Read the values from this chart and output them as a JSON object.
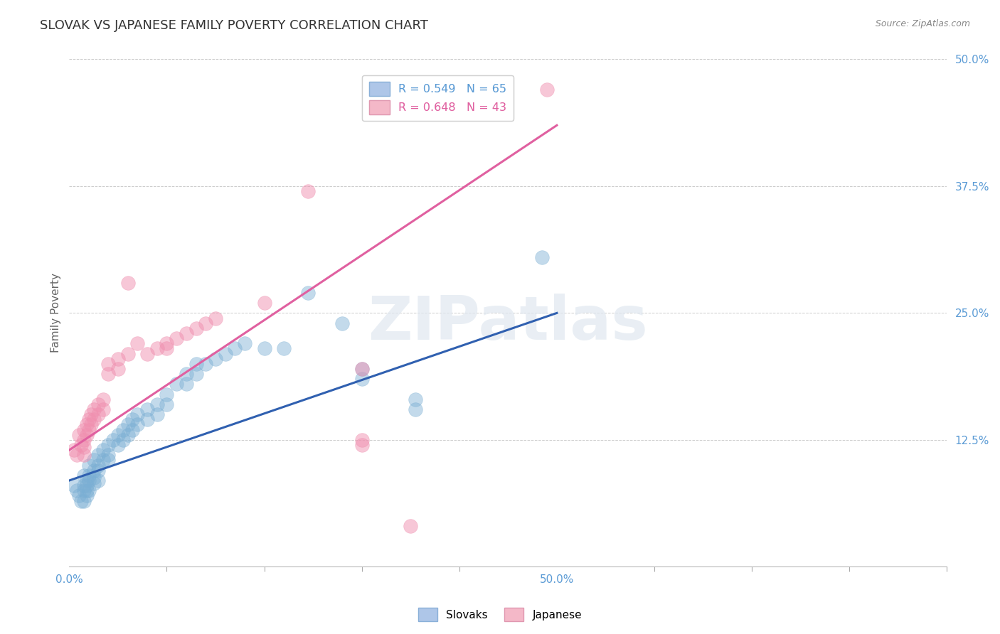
{
  "title": "SLOVAK VS JAPANESE FAMILY POVERTY CORRELATION CHART",
  "source": "Source: ZipAtlas.com",
  "ylabel": "Family Poverty",
  "y_tick_labels": [
    "12.5%",
    "25.0%",
    "37.5%",
    "50.0%"
  ],
  "y_tick_positions": [
    0.125,
    0.25,
    0.375,
    0.5
  ],
  "xlim": [
    0.0,
    0.5
  ],
  "ylim": [
    0.0,
    0.5
  ],
  "legend_entries": [
    {
      "label": "R = 0.549   N = 65",
      "color": "#aec6e8"
    },
    {
      "label": "R = 0.648   N = 43",
      "color": "#f4b8c8"
    }
  ],
  "slovak_color": "#7bafd4",
  "japanese_color": "#f090b0",
  "background_color": "#ffffff",
  "grid_color": "#cccccc",
  "watermark_text": "ZIPatlas",
  "slovak_line_color": "#3060b0",
  "japanese_line_color": "#e060a0",
  "slovak_scatter": [
    [
      0.005,
      0.08
    ],
    [
      0.008,
      0.075
    ],
    [
      0.01,
      0.07
    ],
    [
      0.012,
      0.065
    ],
    [
      0.015,
      0.09
    ],
    [
      0.015,
      0.08
    ],
    [
      0.015,
      0.075
    ],
    [
      0.015,
      0.065
    ],
    [
      0.018,
      0.085
    ],
    [
      0.018,
      0.08
    ],
    [
      0.018,
      0.075
    ],
    [
      0.018,
      0.07
    ],
    [
      0.02,
      0.1
    ],
    [
      0.02,
      0.09
    ],
    [
      0.02,
      0.085
    ],
    [
      0.02,
      0.075
    ],
    [
      0.025,
      0.105
    ],
    [
      0.025,
      0.095
    ],
    [
      0.025,
      0.088
    ],
    [
      0.025,
      0.082
    ],
    [
      0.03,
      0.11
    ],
    [
      0.03,
      0.1
    ],
    [
      0.03,
      0.095
    ],
    [
      0.03,
      0.085
    ],
    [
      0.035,
      0.115
    ],
    [
      0.035,
      0.105
    ],
    [
      0.04,
      0.12
    ],
    [
      0.04,
      0.11
    ],
    [
      0.04,
      0.105
    ],
    [
      0.045,
      0.125
    ],
    [
      0.05,
      0.13
    ],
    [
      0.05,
      0.12
    ],
    [
      0.055,
      0.135
    ],
    [
      0.055,
      0.125
    ],
    [
      0.06,
      0.14
    ],
    [
      0.06,
      0.13
    ],
    [
      0.065,
      0.145
    ],
    [
      0.065,
      0.135
    ],
    [
      0.07,
      0.15
    ],
    [
      0.07,
      0.14
    ],
    [
      0.08,
      0.155
    ],
    [
      0.08,
      0.145
    ],
    [
      0.09,
      0.16
    ],
    [
      0.09,
      0.15
    ],
    [
      0.1,
      0.17
    ],
    [
      0.1,
      0.16
    ],
    [
      0.11,
      0.18
    ],
    [
      0.12,
      0.19
    ],
    [
      0.12,
      0.18
    ],
    [
      0.13,
      0.2
    ],
    [
      0.13,
      0.19
    ],
    [
      0.14,
      0.2
    ],
    [
      0.15,
      0.205
    ],
    [
      0.16,
      0.21
    ],
    [
      0.17,
      0.215
    ],
    [
      0.18,
      0.22
    ],
    [
      0.2,
      0.215
    ],
    [
      0.22,
      0.215
    ],
    [
      0.245,
      0.27
    ],
    [
      0.28,
      0.24
    ],
    [
      0.3,
      0.195
    ],
    [
      0.3,
      0.185
    ],
    [
      0.355,
      0.165
    ],
    [
      0.355,
      0.155
    ],
    [
      0.485,
      0.305
    ]
  ],
  "japanese_scatter": [
    [
      0.005,
      0.115
    ],
    [
      0.008,
      0.11
    ],
    [
      0.01,
      0.13
    ],
    [
      0.012,
      0.12
    ],
    [
      0.015,
      0.135
    ],
    [
      0.015,
      0.125
    ],
    [
      0.015,
      0.118
    ],
    [
      0.015,
      0.11
    ],
    [
      0.018,
      0.14
    ],
    [
      0.018,
      0.13
    ],
    [
      0.02,
      0.145
    ],
    [
      0.02,
      0.135
    ],
    [
      0.022,
      0.15
    ],
    [
      0.022,
      0.14
    ],
    [
      0.025,
      0.155
    ],
    [
      0.025,
      0.145
    ],
    [
      0.03,
      0.16
    ],
    [
      0.03,
      0.15
    ],
    [
      0.035,
      0.165
    ],
    [
      0.035,
      0.155
    ],
    [
      0.04,
      0.2
    ],
    [
      0.04,
      0.19
    ],
    [
      0.05,
      0.205
    ],
    [
      0.05,
      0.195
    ],
    [
      0.06,
      0.21
    ],
    [
      0.07,
      0.22
    ],
    [
      0.08,
      0.21
    ],
    [
      0.09,
      0.215
    ],
    [
      0.1,
      0.22
    ],
    [
      0.1,
      0.215
    ],
    [
      0.11,
      0.225
    ],
    [
      0.12,
      0.23
    ],
    [
      0.13,
      0.235
    ],
    [
      0.14,
      0.24
    ],
    [
      0.15,
      0.245
    ],
    [
      0.06,
      0.28
    ],
    [
      0.3,
      0.125
    ],
    [
      0.3,
      0.12
    ],
    [
      0.35,
      0.04
    ],
    [
      0.49,
      0.47
    ],
    [
      0.245,
      0.37
    ],
    [
      0.3,
      0.195
    ],
    [
      0.2,
      0.26
    ]
  ],
  "title_fontsize": 13,
  "axis_label_fontsize": 11,
  "tick_fontsize": 11
}
